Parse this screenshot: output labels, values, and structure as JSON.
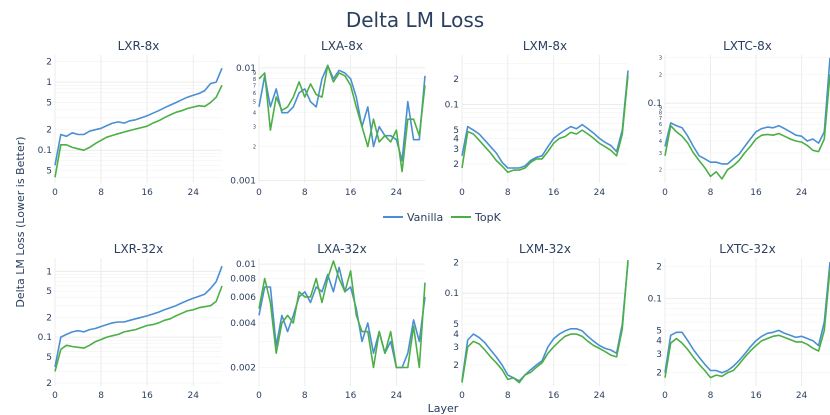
{
  "title": "Delta LM Loss",
  "ylabel": "Delta LM Loss (Lower is Better)",
  "xlabel": "Layer",
  "legend": [
    {
      "name": "Vanilla",
      "color": "#4a8fd4"
    },
    {
      "name": "TopK",
      "color": "#4caf45"
    }
  ],
  "chart_data": [
    {
      "type": "line",
      "title": "LXR-8x",
      "xlim": [
        0,
        29
      ],
      "xticks": [
        0,
        8,
        16,
        24
      ],
      "ylog": true,
      "ylim": [
        0.033,
        2.5
      ],
      "yticks": [
        {
          "v": 2,
          "t": "2"
        },
        {
          "v": 1,
          "t": "1"
        },
        {
          "v": 0.5,
          "t": "5"
        },
        {
          "v": 0.2,
          "t": "2"
        },
        {
          "v": 0.1,
          "t": "0.1"
        },
        {
          "v": 0.05,
          "t": "5"
        }
      ],
      "series": [
        {
          "name": "Vanilla",
          "values": [
            0.06,
            0.17,
            0.16,
            0.18,
            0.17,
            0.17,
            0.19,
            0.2,
            0.21,
            0.23,
            0.25,
            0.26,
            0.25,
            0.27,
            0.28,
            0.3,
            0.32,
            0.35,
            0.38,
            0.42,
            0.46,
            0.5,
            0.55,
            0.6,
            0.64,
            0.68,
            0.75,
            0.95,
            1.0,
            1.6
          ]
        },
        {
          "name": "TopK",
          "values": [
            0.04,
            0.12,
            0.12,
            0.11,
            0.105,
            0.1,
            0.11,
            0.125,
            0.14,
            0.155,
            0.165,
            0.175,
            0.185,
            0.195,
            0.205,
            0.215,
            0.225,
            0.25,
            0.27,
            0.3,
            0.33,
            0.36,
            0.38,
            0.41,
            0.43,
            0.45,
            0.44,
            0.5,
            0.6,
            0.9
          ]
        }
      ]
    },
    {
      "type": "line",
      "title": "LXA-8x",
      "xlim": [
        0,
        29
      ],
      "xticks": [
        0,
        8,
        16,
        24
      ],
      "ylog": true,
      "ylim": [
        0.00095,
        0.013
      ],
      "yticks": [
        {
          "v": 0.01,
          "t": "0.01"
        },
        {
          "v": 0.009,
          "t": "9"
        },
        {
          "v": 0.008,
          "t": "8"
        },
        {
          "v": 0.007,
          "t": "7"
        },
        {
          "v": 0.006,
          "t": "6"
        },
        {
          "v": 0.005,
          "t": "5"
        },
        {
          "v": 0.004,
          "t": "4"
        },
        {
          "v": 0.003,
          "t": "3"
        },
        {
          "v": 0.002,
          "t": "2"
        },
        {
          "v": 0.001,
          "t": "0.001"
        }
      ],
      "series": [
        {
          "name": "Vanilla",
          "values": [
            0.0045,
            0.0085,
            0.0045,
            0.0065,
            0.004,
            0.004,
            0.0045,
            0.006,
            0.0065,
            0.005,
            0.0045,
            0.008,
            0.0105,
            0.008,
            0.0095,
            0.009,
            0.008,
            0.0055,
            0.003,
            0.0045,
            0.002,
            0.003,
            0.0025,
            0.0025,
            0.0023,
            0.0015,
            0.005,
            0.0023,
            0.0023,
            0.0085
          ]
        },
        {
          "name": "TopK",
          "values": [
            0.008,
            0.009,
            0.0028,
            0.0055,
            0.0042,
            0.0045,
            0.0055,
            0.0075,
            0.0055,
            0.0072,
            0.0058,
            0.0055,
            0.0105,
            0.0075,
            0.009,
            0.0085,
            0.007,
            0.0045,
            0.003,
            0.002,
            0.0035,
            0.0022,
            0.0025,
            0.0022,
            0.0028,
            0.0012,
            0.0035,
            0.0035,
            0.0025,
            0.007
          ]
        }
      ]
    },
    {
      "type": "line",
      "title": "LXM-8x",
      "xlim": [
        0,
        29
      ],
      "xticks": [
        0,
        8,
        16,
        24
      ],
      "ylog": true,
      "ylim": [
        0.012,
        0.38
      ],
      "yticks": [
        {
          "v": 0.2,
          "t": "2"
        },
        {
          "v": 0.1,
          "t": "0.1"
        },
        {
          "v": 0.05,
          "t": "5"
        },
        {
          "v": 0.04,
          "t": "4"
        },
        {
          "v": 0.03,
          "t": "3"
        },
        {
          "v": 0.02,
          "t": "2"
        }
      ],
      "series": [
        {
          "name": "Vanilla",
          "values": [
            0.025,
            0.055,
            0.05,
            0.045,
            0.038,
            0.032,
            0.027,
            0.021,
            0.018,
            0.018,
            0.018,
            0.019,
            0.022,
            0.024,
            0.025,
            0.032,
            0.04,
            0.045,
            0.05,
            0.055,
            0.052,
            0.058,
            0.052,
            0.046,
            0.04,
            0.036,
            0.033,
            0.028,
            0.05,
            0.25
          ]
        },
        {
          "name": "TopK",
          "values": [
            0.018,
            0.048,
            0.045,
            0.038,
            0.032,
            0.027,
            0.022,
            0.019,
            0.016,
            0.017,
            0.017,
            0.018,
            0.021,
            0.023,
            0.023,
            0.028,
            0.035,
            0.04,
            0.042,
            0.047,
            0.045,
            0.05,
            0.045,
            0.04,
            0.035,
            0.032,
            0.029,
            0.025,
            0.045,
            0.22
          ]
        }
      ]
    },
    {
      "type": "line",
      "title": "LXTC-8x",
      "xlim": [
        0,
        29
      ],
      "xticks": [
        0,
        8,
        16,
        24
      ],
      "ylog": true,
      "ylim": [
        0.0145,
        0.32
      ],
      "yticks": [
        {
          "v": 0.3,
          "t": "3"
        },
        {
          "v": 0.2,
          "t": "2"
        },
        {
          "v": 0.1,
          "t": "0.1"
        },
        {
          "v": 0.09,
          "t": "9"
        },
        {
          "v": 0.08,
          "t": "8"
        },
        {
          "v": 0.07,
          "t": "7"
        },
        {
          "v": 0.06,
          "t": "6"
        },
        {
          "v": 0.05,
          "t": "5"
        },
        {
          "v": 0.04,
          "t": "4"
        },
        {
          "v": 0.03,
          "t": "3"
        },
        {
          "v": 0.02,
          "t": "2"
        }
      ],
      "series": [
        {
          "name": "Vanilla",
          "values": [
            0.035,
            0.062,
            0.058,
            0.055,
            0.045,
            0.035,
            0.028,
            0.026,
            0.024,
            0.024,
            0.023,
            0.023,
            0.026,
            0.029,
            0.035,
            0.042,
            0.05,
            0.054,
            0.056,
            0.055,
            0.058,
            0.054,
            0.05,
            0.046,
            0.045,
            0.04,
            0.042,
            0.038,
            0.05,
            0.3
          ]
        },
        {
          "name": "TopK",
          "values": [
            0.028,
            0.058,
            0.05,
            0.045,
            0.038,
            0.03,
            0.025,
            0.021,
            0.017,
            0.019,
            0.016,
            0.02,
            0.022,
            0.025,
            0.03,
            0.035,
            0.042,
            0.046,
            0.047,
            0.046,
            0.048,
            0.045,
            0.042,
            0.04,
            0.039,
            0.036,
            0.032,
            0.031,
            0.042,
            0.2
          ]
        }
      ]
    },
    {
      "type": "line",
      "title": "LXR-32x",
      "xlim": [
        0,
        29
      ],
      "xticks": [
        0,
        8,
        16,
        24
      ],
      "ylog": true,
      "ylim": [
        0.018,
        1.6
      ],
      "yticks": [
        {
          "v": 1,
          "t": "1"
        },
        {
          "v": 0.5,
          "t": "5"
        },
        {
          "v": 0.2,
          "t": "2"
        },
        {
          "v": 0.1,
          "t": "0.1"
        },
        {
          "v": 0.05,
          "t": "5"
        },
        {
          "v": 0.02,
          "t": "2"
        }
      ],
      "series": [
        {
          "name": "Vanilla",
          "values": [
            0.035,
            0.1,
            0.11,
            0.12,
            0.125,
            0.12,
            0.13,
            0.135,
            0.145,
            0.155,
            0.165,
            0.17,
            0.17,
            0.18,
            0.19,
            0.2,
            0.21,
            0.225,
            0.24,
            0.26,
            0.28,
            0.3,
            0.33,
            0.36,
            0.39,
            0.42,
            0.45,
            0.55,
            0.7,
            1.2
          ]
        },
        {
          "name": "TopK",
          "values": [
            0.03,
            0.065,
            0.075,
            0.072,
            0.07,
            0.068,
            0.075,
            0.085,
            0.092,
            0.1,
            0.105,
            0.11,
            0.12,
            0.125,
            0.13,
            0.14,
            0.15,
            0.155,
            0.165,
            0.18,
            0.19,
            0.21,
            0.23,
            0.25,
            0.26,
            0.28,
            0.29,
            0.3,
            0.35,
            0.6
          ]
        }
      ]
    },
    {
      "type": "line",
      "title": "LXA-32x",
      "xlim": [
        0,
        29
      ],
      "xticks": [
        0,
        8,
        16,
        24
      ],
      "ylog": true,
      "ylim": [
        0.0015,
        0.011
      ],
      "yticks": [
        {
          "v": 0.01,
          "t": "0.01"
        },
        {
          "v": 0.008,
          "t": "0.008"
        },
        {
          "v": 0.006,
          "t": "0.006"
        },
        {
          "v": 0.004,
          "t": "0.004"
        },
        {
          "v": 0.002,
          "t": "0.002"
        }
      ],
      "series": [
        {
          "name": "Vanilla",
          "values": [
            0.0045,
            0.007,
            0.007,
            0.0028,
            0.0045,
            0.0035,
            0.0045,
            0.006,
            0.0065,
            0.0055,
            0.007,
            0.0065,
            0.0085,
            0.0065,
            0.0095,
            0.0065,
            0.007,
            0.005,
            0.003,
            0.004,
            0.0025,
            0.0035,
            0.0025,
            0.003,
            0.002,
            0.002,
            0.0025,
            0.0042,
            0.003,
            0.006
          ]
        },
        {
          "name": "TopK",
          "values": [
            0.005,
            0.008,
            0.0055,
            0.0025,
            0.004,
            0.0045,
            0.004,
            0.0065,
            0.006,
            0.006,
            0.008,
            0.0055,
            0.008,
            0.0105,
            0.008,
            0.0065,
            0.009,
            0.0045,
            0.0035,
            0.0035,
            0.002,
            0.0035,
            0.0025,
            0.0035,
            0.002,
            0.002,
            0.002,
            0.0038,
            0.002,
            0.0075
          ]
        }
      ]
    },
    {
      "type": "line",
      "title": "LXM-32x",
      "xlim": [
        0,
        29
      ],
      "xticks": [
        0,
        8,
        16,
        24
      ],
      "ylog": true,
      "ylim": [
        0.0125,
        0.22
      ],
      "yticks": [
        {
          "v": 0.2,
          "t": "2"
        },
        {
          "v": 0.1,
          "t": "0.1"
        },
        {
          "v": 0.05,
          "t": "5"
        },
        {
          "v": 0.04,
          "t": "4"
        },
        {
          "v": 0.03,
          "t": "3"
        },
        {
          "v": 0.02,
          "t": "2"
        }
      ],
      "series": [
        {
          "name": "Vanilla",
          "values": [
            0.014,
            0.035,
            0.04,
            0.037,
            0.033,
            0.028,
            0.024,
            0.02,
            0.016,
            0.015,
            0.014,
            0.016,
            0.018,
            0.02,
            0.022,
            0.03,
            0.036,
            0.04,
            0.043,
            0.045,
            0.045,
            0.043,
            0.038,
            0.034,
            0.031,
            0.029,
            0.028,
            0.026,
            0.05,
            0.2
          ]
        },
        {
          "name": "TopK",
          "values": [
            0.0135,
            0.03,
            0.034,
            0.032,
            0.028,
            0.024,
            0.021,
            0.018,
            0.0145,
            0.015,
            0.0135,
            0.016,
            0.017,
            0.019,
            0.021,
            0.026,
            0.03,
            0.034,
            0.038,
            0.04,
            0.04,
            0.038,
            0.034,
            0.031,
            0.029,
            0.027,
            0.025,
            0.024,
            0.045,
            0.21
          ]
        }
      ]
    },
    {
      "type": "line",
      "title": "LXTC-32x",
      "xlim": [
        0,
        29
      ],
      "xticks": [
        0,
        8,
        16,
        24
      ],
      "ylog": true,
      "ylim": [
        0.015,
        0.24
      ],
      "yticks": [
        {
          "v": 0.2,
          "t": "2"
        },
        {
          "v": 0.1,
          "t": "0.1"
        },
        {
          "v": 0.05,
          "t": "5"
        },
        {
          "v": 0.04,
          "t": "4"
        },
        {
          "v": 0.03,
          "t": "3"
        },
        {
          "v": 0.02,
          "t": "2"
        }
      ],
      "series": [
        {
          "name": "Vanilla",
          "values": [
            0.02,
            0.045,
            0.048,
            0.048,
            0.04,
            0.033,
            0.028,
            0.024,
            0.021,
            0.021,
            0.02,
            0.021,
            0.023,
            0.026,
            0.03,
            0.035,
            0.04,
            0.044,
            0.047,
            0.048,
            0.05,
            0.047,
            0.045,
            0.043,
            0.044,
            0.042,
            0.04,
            0.036,
            0.06,
            0.22
          ]
        },
        {
          "name": "TopK",
          "values": [
            0.018,
            0.038,
            0.042,
            0.038,
            0.033,
            0.028,
            0.024,
            0.021,
            0.018,
            0.019,
            0.0185,
            0.02,
            0.021,
            0.024,
            0.028,
            0.032,
            0.036,
            0.04,
            0.042,
            0.044,
            0.045,
            0.043,
            0.041,
            0.039,
            0.039,
            0.037,
            0.034,
            0.032,
            0.05,
            0.19
          ]
        }
      ]
    }
  ]
}
